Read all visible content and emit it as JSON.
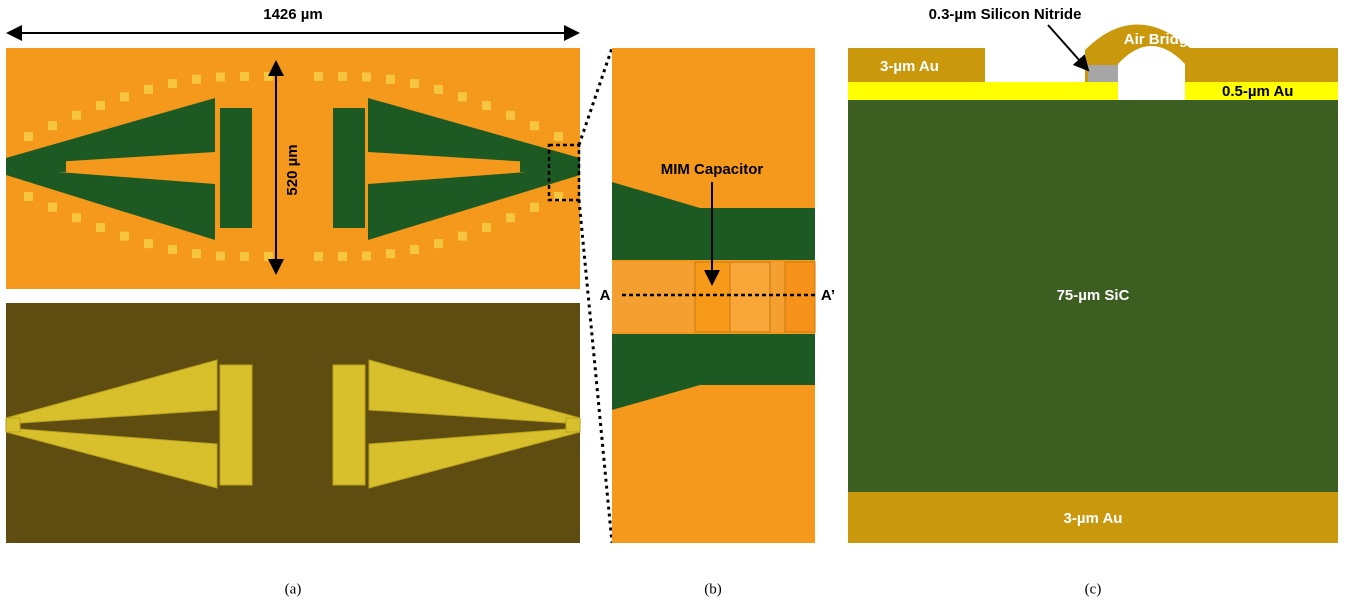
{
  "panel_a": {
    "width_label": "1426 µm",
    "height_label": "520 µm",
    "caption": "(a)"
  },
  "panel_b": {
    "capacitor_label": "MIM Capacitor",
    "section_start": "A",
    "section_end": "A’",
    "caption": "(b)"
  },
  "panel_c": {
    "nitride_label": "0.3-µm Silicon Nitride",
    "bridge_label": "Air Bridge",
    "top_metal_label": "3-µm Au",
    "thin_metal_label": "0.5-µm Au",
    "substrate_label": "75-µm SiC",
    "bottom_metal_label": "3-µm Au",
    "caption": "(c)"
  }
}
